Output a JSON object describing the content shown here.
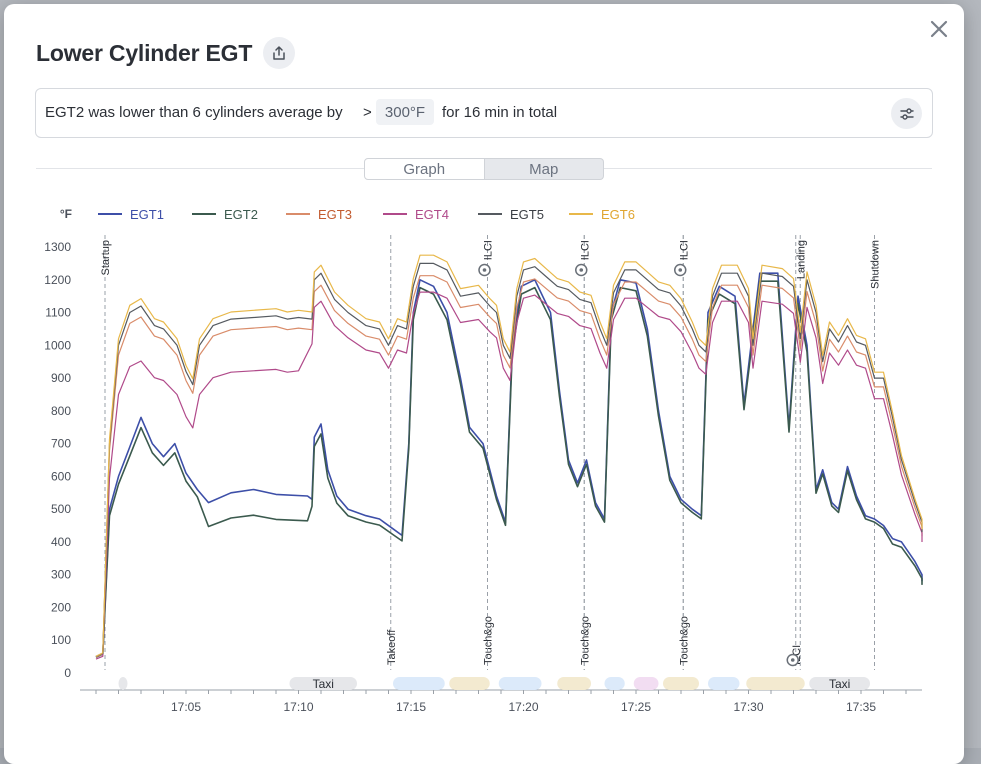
{
  "modal": {
    "title": "Lower Cylinder EGT",
    "close_icon": "close-icon",
    "share_icon": "share-icon"
  },
  "filter": {
    "text_before": "EGT2 was lower than 6 cylinders average by",
    "operator": ">",
    "threshold": "300°F",
    "text_after": "for 16 min in total",
    "settings_icon": "sliders-icon"
  },
  "tabs": [
    {
      "label": "Graph",
      "active": true
    },
    {
      "label": "Map",
      "active": false
    }
  ],
  "chart_data": {
    "type": "line",
    "unit_label": "°F",
    "y_ticks": [
      "1300",
      "1200",
      "1100",
      "1000",
      "900",
      "800",
      "700",
      "600",
      "500",
      "400",
      "300",
      "200",
      "100",
      "0"
    ],
    "ylim": [
      0,
      1300
    ],
    "x_ticks": [
      "17:05",
      "17:10",
      "17:15",
      "17:20",
      "17:25",
      "17:30",
      "17:35"
    ],
    "xlim": [
      "17:01",
      "17:37"
    ],
    "grid": false,
    "legend_position": "top-left",
    "series": [
      {
        "name": "EGT1",
        "color": "#3d4fa8"
      },
      {
        "name": "EGT2",
        "color": "#3b5a4e"
      },
      {
        "name": "EGT3",
        "color": "#d98c6a"
      },
      {
        "name": "EGT4",
        "color": "#b04a8a"
      },
      {
        "name": "EGT5",
        "color": "#555a60"
      },
      {
        "name": "EGT6",
        "color": "#e8b84a"
      }
    ],
    "legend_text_colors": [
      "#3d4fa8",
      "#3b5a4e",
      "#c25a2e",
      "#b04a8a",
      "#3b3f45",
      "#e0a530"
    ],
    "events": [
      {
        "label": "Startup",
        "time": "17:01.4",
        "pos": "top"
      },
      {
        "label": "Takeoff",
        "time": "17:14.1",
        "pos": "bottom"
      },
      {
        "label": "Touch&go",
        "time": "17:18.4",
        "pos": "bottom"
      },
      {
        "label": "ILCI",
        "time": "17:18.4",
        "pos": "top"
      },
      {
        "label": "Touch&go",
        "time": "17:22.7",
        "pos": "bottom"
      },
      {
        "label": "ILCI",
        "time": "17:22.7",
        "pos": "top"
      },
      {
        "label": "Touch&go",
        "time": "17:27.1",
        "pos": "bottom"
      },
      {
        "label": "ILCI",
        "time": "17:27.1",
        "pos": "top"
      },
      {
        "label": "Landing",
        "time": "17:32.3",
        "pos": "top"
      },
      {
        "label": "ILCI",
        "time": "17:32.1",
        "pos": "bottom"
      },
      {
        "label": "Shutdown",
        "time": "17:35.6",
        "pos": "top"
      }
    ],
    "phases": [
      {
        "label": "",
        "start": "17:02.0",
        "end": "17:02.4",
        "color": "#e6e7ea"
      },
      {
        "label": "Taxi",
        "start": "17:09.6",
        "end": "17:12.6",
        "color": "#e6e7ea"
      },
      {
        "label": "",
        "start": "17:14.2",
        "end": "17:16.5",
        "color": "#dceafa"
      },
      {
        "label": "",
        "start": "17:16.7",
        "end": "17:18.5",
        "color": "#f3ead0"
      },
      {
        "label": "",
        "start": "17:18.9",
        "end": "17:20.8",
        "color": "#dceafa"
      },
      {
        "label": "",
        "start": "17:21.5",
        "end": "17:23.0",
        "color": "#f3ead0"
      },
      {
        "label": "",
        "start": "17:23.6",
        "end": "17:24.5",
        "color": "#dceafa"
      },
      {
        "label": "",
        "start": "17:24.9",
        "end": "17:26.0",
        "color": "#f2ddf2"
      },
      {
        "label": "",
        "start": "17:26.2",
        "end": "17:27.8",
        "color": "#f3ead0"
      },
      {
        "label": "",
        "start": "17:28.2",
        "end": "17:29.6",
        "color": "#dceafa"
      },
      {
        "label": "",
        "start": "17:29.9",
        "end": "17:32.5",
        "color": "#f3ead0"
      },
      {
        "label": "Taxi",
        "start": "17:32.7",
        "end": "17:35.4",
        "color": "#e6e7ea"
      }
    ]
  }
}
